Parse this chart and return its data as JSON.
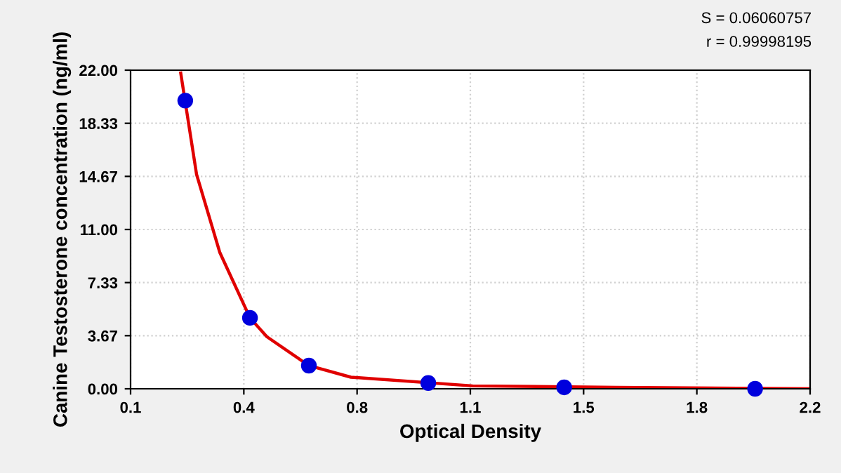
{
  "chart_data": {
    "type": "scatter",
    "xlabel": "Optical Density",
    "ylabel": "Canine Testosterone concentration (ng/ml)",
    "annotations": [
      "S = 0.06060757",
      "r = 0.99998195"
    ],
    "xlim": [
      0.1,
      2.2
    ],
    "ylim": [
      0,
      22
    ],
    "xticks": [
      0.1,
      {
        "value": 0.45,
        "label": "0.4"
      },
      0.8,
      {
        "value": 1.15,
        "label": "1.1"
      },
      1.5,
      {
        "value": 1.85,
        "label": "1.8"
      },
      2.2
    ],
    "yticks": [
      {
        "value": 0,
        "label": "0.00"
      },
      {
        "value": 3.667,
        "label": "3.67"
      },
      {
        "value": 7.333,
        "label": "7.33"
      },
      {
        "value": 11,
        "label": "11.00"
      },
      {
        "value": 14.667,
        "label": "14.67"
      },
      {
        "value": 18.333,
        "label": "18.33"
      },
      {
        "value": 22,
        "label": "22.00"
      }
    ],
    "grid": true,
    "marker": "circle",
    "series": [
      {
        "type": "line",
        "color": "#e00000",
        "marker": "none",
        "x": [
          0.255,
          0.304,
          0.376,
          0.469,
          0.521,
          0.651,
          0.781,
          1.157,
          1.6,
          2.2
        ],
        "values": [
          21.8,
          14.8,
          9.4,
          4.9,
          3.6,
          1.6,
          0.8,
          0.2,
          0.1,
          0.0
        ]
      },
      {
        "color": "#0000dd",
        "x": [
          0.269,
          0.469,
          0.651,
          1.02,
          1.44,
          2.03
        ],
        "values": [
          19.9,
          4.9,
          1.6,
          0.4,
          0.1,
          0.0
        ]
      }
    ]
  }
}
